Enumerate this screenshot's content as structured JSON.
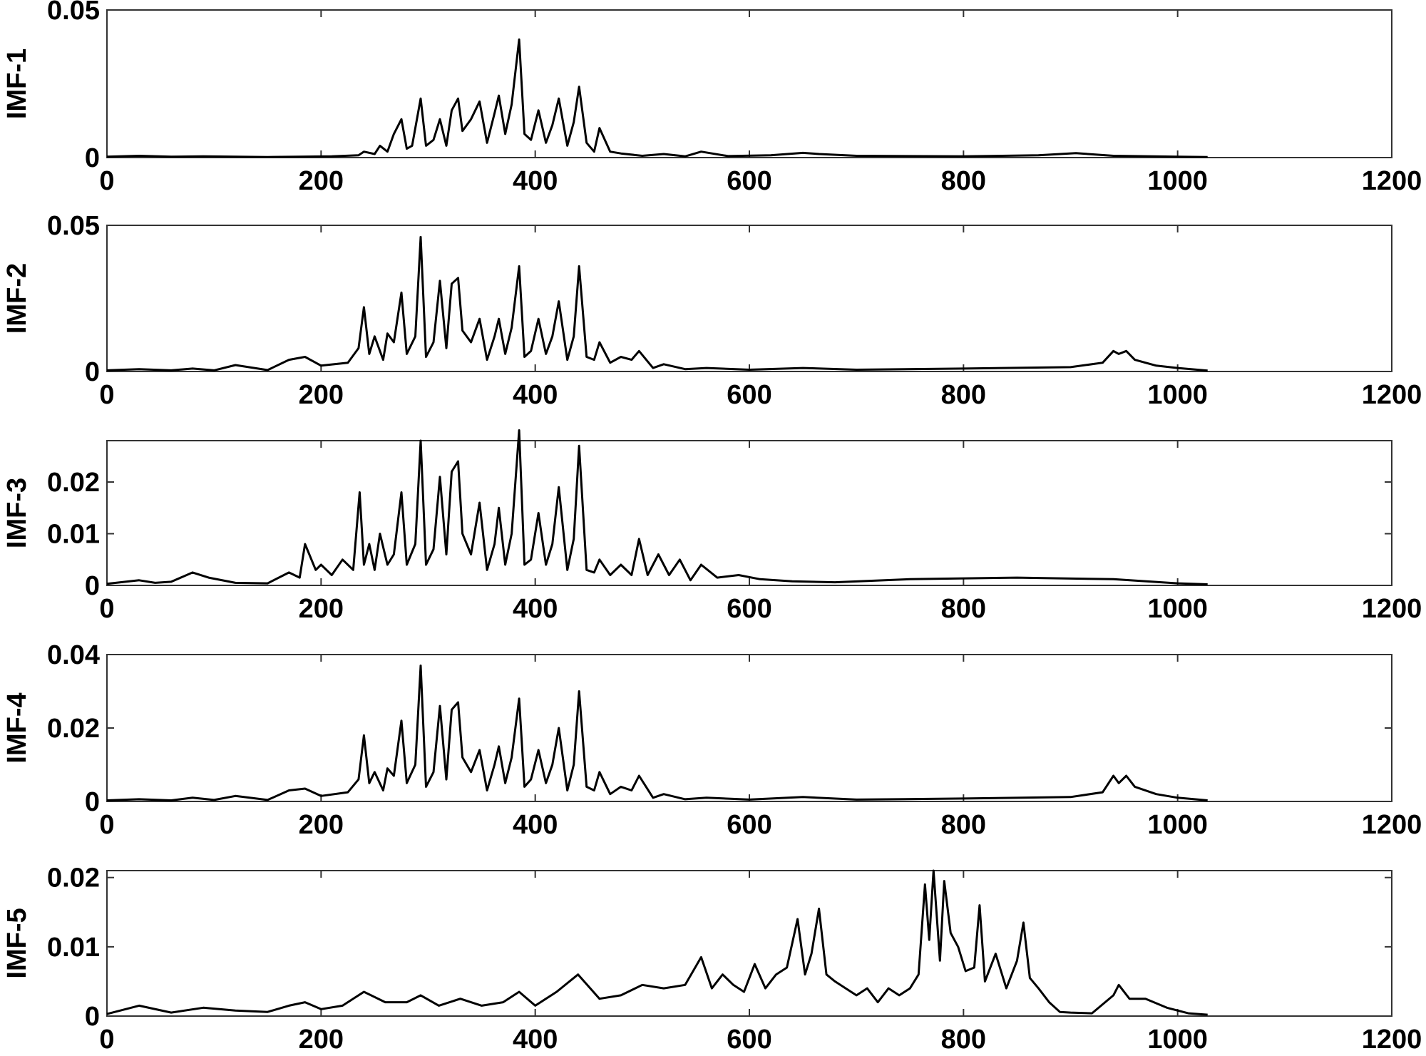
{
  "figure": {
    "background": "#ffffff",
    "line_color": "#000000"
  },
  "chart_data": [
    {
      "type": "line",
      "ylabel": "IMF-1",
      "xlim": [
        0,
        1200
      ],
      "ylim": [
        0,
        0.05
      ],
      "xticks": [
        0,
        200,
        400,
        600,
        800,
        1000,
        1200
      ],
      "xtick_labels": [
        "0",
        "200",
        "400",
        "600",
        "800",
        "1000",
        "1200"
      ],
      "yticks": [
        0,
        0.05
      ],
      "ytick_labels": [
        "0",
        "0.05"
      ],
      "series": [
        {
          "x": [
            0,
            30,
            60,
            90,
            120,
            150,
            180,
            210,
            235,
            240,
            250,
            255,
            262,
            268,
            275,
            280,
            285,
            293,
            298,
            305,
            311,
            317,
            322,
            328,
            332,
            340,
            348,
            355,
            362,
            366,
            372,
            378,
            385,
            390,
            396,
            403,
            410,
            416,
            422,
            430,
            436,
            441,
            448,
            455,
            460,
            470,
            480,
            500,
            520,
            540,
            555,
            580,
            620,
            650,
            665,
            700,
            800,
            870,
            905,
            940,
            1000,
            1028
          ],
          "y": [
            0.0003,
            0.0006,
            0.0003,
            0.0004,
            0.0003,
            0.0002,
            0.0003,
            0.0004,
            0.0008,
            0.002,
            0.0012,
            0.004,
            0.002,
            0.008,
            0.013,
            0.003,
            0.004,
            0.02,
            0.004,
            0.006,
            0.013,
            0.004,
            0.016,
            0.02,
            0.009,
            0.013,
            0.019,
            0.005,
            0.015,
            0.021,
            0.008,
            0.018,
            0.04,
            0.008,
            0.006,
            0.016,
            0.005,
            0.011,
            0.02,
            0.004,
            0.012,
            0.024,
            0.005,
            0.002,
            0.01,
            0.002,
            0.0014,
            0.0006,
            0.0012,
            0.0004,
            0.002,
            0.0005,
            0.0008,
            0.0016,
            0.0012,
            0.0006,
            0.0004,
            0.0008,
            0.0015,
            0.0006,
            0.0003,
            0.0002
          ]
        }
      ]
    },
    {
      "type": "line",
      "ylabel": "IMF-2",
      "xlim": [
        0,
        1200
      ],
      "ylim": [
        0,
        0.05
      ],
      "xticks": [
        0,
        200,
        400,
        600,
        800,
        1000,
        1200
      ],
      "xtick_labels": [
        "0",
        "200",
        "400",
        "600",
        "800",
        "1000",
        "1200"
      ],
      "yticks": [
        0,
        0.05
      ],
      "ytick_labels": [
        "0",
        "0.05"
      ],
      "series": [
        {
          "x": [
            0,
            30,
            60,
            80,
            100,
            120,
            150,
            170,
            185,
            200,
            225,
            235,
            240,
            245,
            250,
            258,
            262,
            268,
            275,
            280,
            288,
            293,
            298,
            305,
            311,
            317,
            322,
            328,
            332,
            340,
            348,
            355,
            362,
            366,
            372,
            378,
            385,
            390,
            396,
            403,
            410,
            416,
            422,
            430,
            436,
            441,
            448,
            455,
            460,
            470,
            480,
            490,
            497,
            510,
            520,
            540,
            560,
            600,
            650,
            700,
            800,
            900,
            930,
            940,
            945,
            952,
            960,
            980,
            1000,
            1028
          ],
          "y": [
            0.0004,
            0.0008,
            0.0004,
            0.001,
            0.0004,
            0.0022,
            0.0005,
            0.004,
            0.005,
            0.002,
            0.003,
            0.008,
            0.022,
            0.006,
            0.012,
            0.004,
            0.013,
            0.01,
            0.027,
            0.006,
            0.012,
            0.046,
            0.005,
            0.01,
            0.031,
            0.008,
            0.03,
            0.032,
            0.014,
            0.01,
            0.018,
            0.004,
            0.012,
            0.018,
            0.006,
            0.015,
            0.036,
            0.005,
            0.007,
            0.018,
            0.006,
            0.012,
            0.024,
            0.004,
            0.012,
            0.036,
            0.005,
            0.004,
            0.01,
            0.003,
            0.005,
            0.004,
            0.007,
            0.0012,
            0.0025,
            0.0008,
            0.0012,
            0.0006,
            0.0012,
            0.0006,
            0.001,
            0.0015,
            0.003,
            0.007,
            0.006,
            0.007,
            0.004,
            0.002,
            0.0012,
            0.0003
          ]
        }
      ]
    },
    {
      "type": "line",
      "ylabel": "IMF-3",
      "xlim": [
        0,
        1200
      ],
      "ylim": [
        0,
        0.028
      ],
      "xticks": [
        0,
        200,
        400,
        600,
        800,
        1000,
        1200
      ],
      "xtick_labels": [
        "0",
        "200",
        "400",
        "600",
        "800",
        "1000",
        "1200"
      ],
      "yticks": [
        0,
        0.01,
        0.02
      ],
      "ytick_labels": [
        "0",
        "0.01",
        "0.02"
      ],
      "series": [
        {
          "x": [
            0,
            30,
            45,
            60,
            80,
            95,
            120,
            150,
            170,
            180,
            185,
            195,
            200,
            210,
            220,
            230,
            236,
            240,
            245,
            250,
            255,
            262,
            268,
            275,
            280,
            288,
            293,
            298,
            305,
            311,
            317,
            322,
            328,
            332,
            340,
            348,
            355,
            362,
            366,
            372,
            378,
            385,
            390,
            396,
            403,
            410,
            416,
            422,
            430,
            436,
            441,
            448,
            455,
            460,
            470,
            480,
            490,
            497,
            505,
            515,
            525,
            535,
            545,
            555,
            570,
            590,
            610,
            640,
            680,
            750,
            850,
            940,
            1000,
            1028
          ],
          "y": [
            0.0003,
            0.001,
            0.0005,
            0.0007,
            0.0025,
            0.0015,
            0.0005,
            0.0004,
            0.0025,
            0.0015,
            0.008,
            0.003,
            0.004,
            0.002,
            0.005,
            0.003,
            0.018,
            0.004,
            0.008,
            0.003,
            0.01,
            0.004,
            0.006,
            0.018,
            0.004,
            0.008,
            0.028,
            0.004,
            0.007,
            0.021,
            0.006,
            0.022,
            0.024,
            0.01,
            0.006,
            0.016,
            0.003,
            0.008,
            0.015,
            0.004,
            0.01,
            0.03,
            0.004,
            0.005,
            0.014,
            0.004,
            0.008,
            0.019,
            0.003,
            0.009,
            0.027,
            0.003,
            0.0025,
            0.005,
            0.002,
            0.004,
            0.002,
            0.009,
            0.002,
            0.006,
            0.002,
            0.005,
            0.001,
            0.004,
            0.0015,
            0.002,
            0.0012,
            0.0008,
            0.0006,
            0.0012,
            0.0015,
            0.0012,
            0.0004,
            0.0002
          ]
        }
      ]
    },
    {
      "type": "line",
      "ylabel": "IMF-4",
      "xlim": [
        0,
        1200
      ],
      "ylim": [
        0,
        0.04
      ],
      "xticks": [
        0,
        200,
        400,
        600,
        800,
        1000,
        1200
      ],
      "xtick_labels": [
        "0",
        "200",
        "400",
        "600",
        "800",
        "1000",
        "1200"
      ],
      "yticks": [
        0,
        0.02,
        0.04
      ],
      "ytick_labels": [
        "0",
        "0.02",
        "0.04"
      ],
      "series": [
        {
          "x": [
            0,
            30,
            60,
            80,
            100,
            120,
            150,
            170,
            185,
            200,
            225,
            235,
            240,
            245,
            250,
            258,
            262,
            268,
            275,
            280,
            288,
            293,
            298,
            305,
            311,
            317,
            322,
            328,
            332,
            340,
            348,
            355,
            362,
            366,
            372,
            378,
            385,
            390,
            396,
            403,
            410,
            416,
            422,
            430,
            436,
            441,
            448,
            455,
            460,
            470,
            480,
            490,
            497,
            510,
            520,
            540,
            560,
            600,
            650,
            700,
            800,
            900,
            930,
            940,
            945,
            952,
            960,
            980,
            1000,
            1028
          ],
          "y": [
            0.0003,
            0.0006,
            0.0003,
            0.001,
            0.0004,
            0.0015,
            0.0004,
            0.003,
            0.0035,
            0.0015,
            0.0025,
            0.006,
            0.018,
            0.005,
            0.008,
            0.003,
            0.009,
            0.007,
            0.022,
            0.005,
            0.01,
            0.037,
            0.004,
            0.008,
            0.026,
            0.006,
            0.025,
            0.027,
            0.012,
            0.008,
            0.014,
            0.003,
            0.01,
            0.015,
            0.005,
            0.012,
            0.028,
            0.004,
            0.006,
            0.014,
            0.005,
            0.01,
            0.02,
            0.003,
            0.01,
            0.03,
            0.004,
            0.003,
            0.008,
            0.002,
            0.004,
            0.003,
            0.007,
            0.001,
            0.002,
            0.0006,
            0.001,
            0.0005,
            0.0012,
            0.0005,
            0.0008,
            0.0012,
            0.0025,
            0.007,
            0.005,
            0.007,
            0.004,
            0.002,
            0.001,
            0.0003
          ]
        }
      ]
    },
    {
      "type": "line",
      "ylabel": "IMF-5",
      "xlim": [
        0,
        1200
      ],
      "ylim": [
        0,
        0.021
      ],
      "xticks": [
        0,
        200,
        400,
        600,
        800,
        1000,
        1200
      ],
      "xtick_labels": [
        "0",
        "200",
        "400",
        "600",
        "800",
        "1000",
        "1200"
      ],
      "yticks": [
        0,
        0.01,
        0.02
      ],
      "ytick_labels": [
        "0",
        "0.01",
        "0.02"
      ],
      "series": [
        {
          "x": [
            0,
            30,
            60,
            90,
            120,
            150,
            170,
            185,
            200,
            220,
            240,
            260,
            280,
            293,
            310,
            330,
            350,
            370,
            385,
            400,
            420,
            440,
            460,
            480,
            500,
            520,
            540,
            555,
            565,
            575,
            585,
            595,
            605,
            615,
            625,
            635,
            645,
            652,
            658,
            665,
            672,
            680,
            690,
            700,
            710,
            720,
            730,
            740,
            750,
            758,
            764,
            768,
            772,
            778,
            782,
            788,
            795,
            802,
            810,
            815,
            820,
            830,
            840,
            850,
            856,
            862,
            870,
            880,
            890,
            900,
            920,
            940,
            945,
            955,
            970,
            990,
            1010,
            1028
          ],
          "y": [
            0.0003,
            0.0015,
            0.0005,
            0.0012,
            0.0008,
            0.0006,
            0.0015,
            0.002,
            0.001,
            0.0015,
            0.0035,
            0.002,
            0.002,
            0.003,
            0.0015,
            0.0025,
            0.0015,
            0.002,
            0.0035,
            0.0015,
            0.0035,
            0.006,
            0.0025,
            0.003,
            0.0045,
            0.004,
            0.0045,
            0.0085,
            0.004,
            0.006,
            0.0045,
            0.0035,
            0.0075,
            0.004,
            0.006,
            0.007,
            0.014,
            0.006,
            0.009,
            0.0155,
            0.006,
            0.005,
            0.004,
            0.003,
            0.004,
            0.002,
            0.004,
            0.003,
            0.004,
            0.006,
            0.019,
            0.011,
            0.021,
            0.008,
            0.0195,
            0.012,
            0.01,
            0.0065,
            0.007,
            0.016,
            0.005,
            0.009,
            0.004,
            0.008,
            0.0135,
            0.0055,
            0.004,
            0.002,
            0.0006,
            0.0005,
            0.0004,
            0.003,
            0.0045,
            0.0025,
            0.0025,
            0.0012,
            0.0004,
            0.0002
          ]
        }
      ]
    }
  ]
}
